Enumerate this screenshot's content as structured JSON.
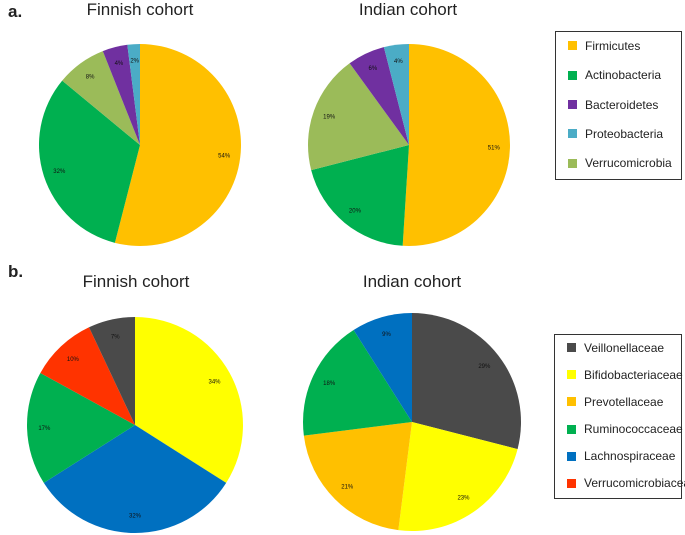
{
  "panels": [
    {
      "label": "a.",
      "legend": [
        {
          "name": "Firmicutes",
          "color": "#ffc000"
        },
        {
          "name": "Actinobacteria",
          "color": "#00b050"
        },
        {
          "name": "Bacteroidetes",
          "color": "#7030a0"
        },
        {
          "name": "Proteobacteria",
          "color": "#4bacc6"
        },
        {
          "name": "Verrucomicrobia",
          "color": "#9bbb59"
        }
      ]
    },
    {
      "label": "b.",
      "legend": [
        {
          "name": "Veillonellaceae",
          "color": "#4a4a4a"
        },
        {
          "name": "Bifidobacteriaceae",
          "color": "#ffff00"
        },
        {
          "name": "Prevotellaceae",
          "color": "#ffc000"
        },
        {
          "name": "Ruminococcaceae",
          "color": "#00b050"
        },
        {
          "name": "Lachnospiraceae",
          "color": "#0070c0"
        },
        {
          "name": "Verrucomicrobiaceae",
          "color": "#ff3300"
        }
      ]
    }
  ],
  "chart_data": [
    {
      "type": "pie",
      "title": "Finnish cohort",
      "categories": [
        "Firmicutes",
        "Actinobacteria",
        "Verrucomicrobia",
        "Bacteroidetes",
        "Proteobacteria"
      ],
      "values": [
        54,
        32,
        8,
        4,
        2
      ],
      "labels": [
        "54%",
        "32%",
        "8%",
        "4%",
        "2%"
      ],
      "colors": [
        "#ffc000",
        "#00b050",
        "#9bbb59",
        "#7030a0",
        "#4bacc6"
      ]
    },
    {
      "type": "pie",
      "title": "Indian cohort",
      "categories": [
        "Firmicutes",
        "Actinobacteria",
        "Verrucomicrobia",
        "Bacteroidetes",
        "Proteobacteria"
      ],
      "values": [
        51,
        20,
        19,
        6,
        4
      ],
      "labels": [
        "51%",
        "20%",
        "19%",
        "6%",
        "4%"
      ],
      "colors": [
        "#ffc000",
        "#00b050",
        "#9bbb59",
        "#7030a0",
        "#4bacc6"
      ]
    },
    {
      "type": "pie",
      "title": "Finnish cohort",
      "categories": [
        "Bifidobacteriaceae",
        "Lachnospiraceae",
        "Ruminococcaceae",
        "Verrucomicrobiaceae",
        "Veillonellaceae"
      ],
      "values": [
        34,
        32,
        17,
        10,
        7
      ],
      "labels": [
        "34%",
        "32%",
        "17%",
        "10%",
        "7%"
      ],
      "colors": [
        "#ffff00",
        "#0070c0",
        "#00b050",
        "#ff3300",
        "#4a4a4a"
      ]
    },
    {
      "type": "pie",
      "title": "Indian cohort",
      "categories": [
        "Veillonellaceae",
        "Bifidobacteriaceae",
        "Prevotellaceae",
        "Ruminococcaceae",
        "Lachnospiraceae"
      ],
      "values": [
        29,
        23,
        21,
        18,
        9
      ],
      "labels": [
        "29%",
        "23%",
        "21%",
        "18%",
        "9%"
      ],
      "colors": [
        "#4a4a4a",
        "#ffff00",
        "#ffc000",
        "#00b050",
        "#0070c0"
      ]
    }
  ]
}
